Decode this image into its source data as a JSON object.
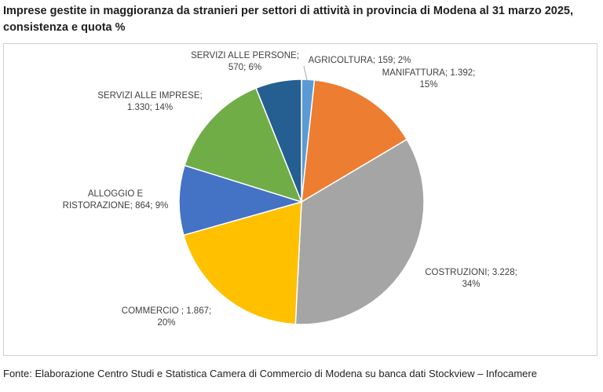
{
  "title": "Imprese gestite in maggioranza da stranieri per settori di attività in provincia di Modena al 31 marzo 2025, consistenza e quota %",
  "footer": "Fonte: Elaborazione Centro Studi e Statistica Camera di Commercio di Modena su banca dati Stockview – Infocamere",
  "chart_data": {
    "type": "pie",
    "title": "Imprese gestite in maggioranza da stranieri per settori di attività in provincia di Modena al 31 marzo 2025, consistenza e quota %",
    "legend": "none",
    "slices": [
      {
        "name": "AGRICOLTURA",
        "value": 159,
        "percent": 2,
        "color": "#5b9bd5",
        "label_lines": [
          "AGRICOLTURA; 159; 2%"
        ]
      },
      {
        "name": "MANIFATTURA",
        "value": 1392,
        "percent": 15,
        "color": "#ed7d31",
        "label_lines": [
          "MANIFATTURA; 1.392;",
          "15%"
        ]
      },
      {
        "name": "COSTRUZIONI",
        "value": 3228,
        "percent": 34,
        "color": "#a5a5a5",
        "label_lines": [
          "COSTRUZIONI; 3.228;",
          "34%"
        ]
      },
      {
        "name": "COMMERCIO",
        "value": 1867,
        "percent": 20,
        "color": "#ffc000",
        "label_lines": [
          "COMMERCIO ; 1.867;",
          "20%"
        ]
      },
      {
        "name": "ALLOGGIO E RISTORAZIONE",
        "value": 864,
        "percent": 9,
        "color": "#4472c4",
        "label_lines": [
          "ALLOGGIO E",
          "RISTORAZIONE; 864; 9%"
        ]
      },
      {
        "name": "SERVIZI ALLE IMPRESE",
        "value": 1330,
        "percent": 14,
        "color": "#70ad47",
        "label_lines": [
          "SERVIZI ALLE IMPRESE;",
          "1.330; 14%"
        ]
      },
      {
        "name": "SERVIZI ALLE PERSONE",
        "value": 570,
        "percent": 6,
        "color": "#255e91",
        "label_lines": [
          "SERVIZI ALLE PERSONE;",
          "570; 6%"
        ]
      }
    ]
  }
}
